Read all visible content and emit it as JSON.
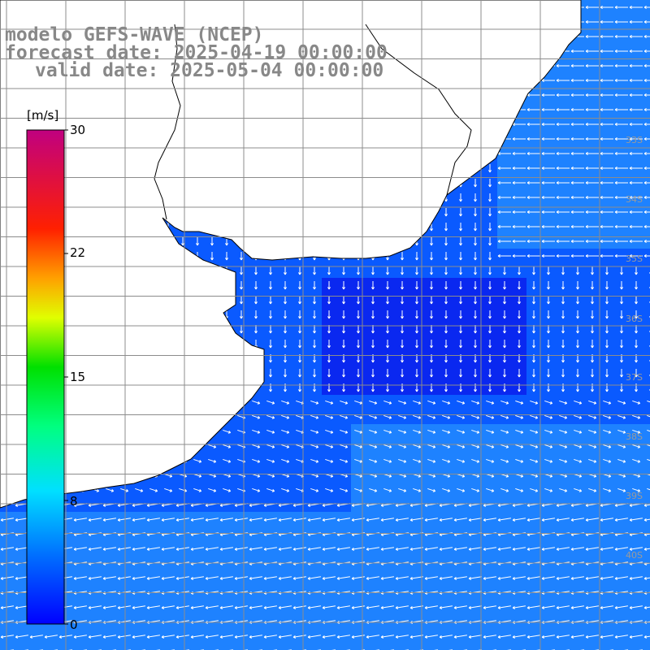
{
  "title": {
    "line1": "modelo GEFS-WAVE (NCEP)",
    "line2": "forecast date: 2025-04-19 00:00:00",
    "line3": "valid date: 2025-05-04 00:00:00"
  },
  "colorbar": {
    "unit": "[m/s]",
    "ticks": [
      "30",
      "22",
      "15",
      "8",
      "0"
    ],
    "min": 0,
    "max": 30,
    "colors": [
      "#0000ff",
      "#00c8ff",
      "#00ffd0",
      "#00ff00",
      "#ffff00",
      "#ff8000",
      "#ff0000",
      "#c80080"
    ]
  },
  "map": {
    "lat_labels": [
      "33S",
      "34S",
      "35S",
      "36S",
      "37S",
      "38S",
      "39S",
      "40S"
    ],
    "field_colors": {
      "calm": "#0a28f0",
      "mid": "#0a5aff",
      "high": "#1e82ff"
    },
    "arrow_color": "#ffffff",
    "grid_color": "#8c8c8c",
    "land_color": "#ffffff"
  }
}
